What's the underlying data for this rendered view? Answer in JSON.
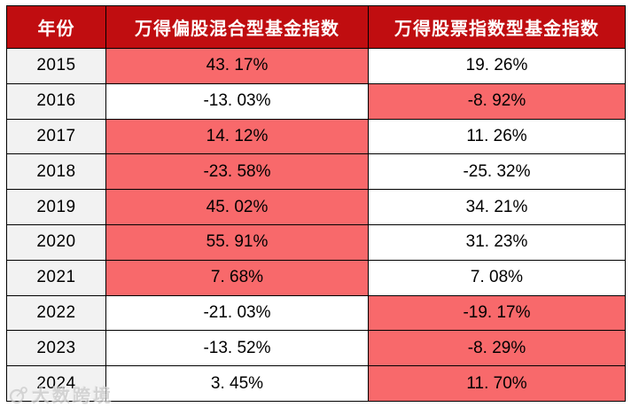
{
  "colors": {
    "header_bg": "#C00D10",
    "header_text": "#FFFFFF",
    "highlight_bg": "#F8696B",
    "year_column_bg": "#F2F2F2",
    "cell_bg": "#FFFFFF",
    "border": "#000000",
    "body_text": "#000000",
    "watermark_text_color": "#C9C9C9"
  },
  "table": {
    "columns": [
      "年份",
      "万得偏股混合型基金指数",
      "万得股票指数型基金指数"
    ],
    "rows": [
      {
        "year": "2015",
        "hybrid": "43. 17%",
        "stock": "19. 26%",
        "highlight": "hybrid"
      },
      {
        "year": "2016",
        "hybrid": "-13. 03%",
        "stock": "-8. 92%",
        "highlight": "stock"
      },
      {
        "year": "2017",
        "hybrid": "14. 12%",
        "stock": "11. 26%",
        "highlight": "hybrid"
      },
      {
        "year": "2018",
        "hybrid": "-23. 58%",
        "stock": "-25. 32%",
        "highlight": "hybrid"
      },
      {
        "year": "2019",
        "hybrid": "45. 02%",
        "stock": "34. 21%",
        "highlight": "hybrid"
      },
      {
        "year": "2020",
        "hybrid": "55. 91%",
        "stock": "31. 23%",
        "highlight": "hybrid"
      },
      {
        "year": "2021",
        "hybrid": "7. 68%",
        "stock": "7. 08%",
        "highlight": "hybrid"
      },
      {
        "year": "2022",
        "hybrid": "-21. 03%",
        "stock": "-19. 17%",
        "highlight": "stock"
      },
      {
        "year": "2023",
        "hybrid": "-13. 52%",
        "stock": "-8. 29%",
        "highlight": "stock"
      },
      {
        "year": "2024",
        "hybrid": "3. 45%",
        "stock": "11. 70%",
        "highlight": "stock"
      }
    ]
  },
  "chart_data": {
    "type": "table",
    "title": "",
    "columns": [
      "年份",
      "万得偏股混合型基金指数",
      "万得股票指数型基金指数"
    ],
    "unit": "%",
    "rows": [
      [
        "2015",
        43.17,
        19.26
      ],
      [
        "2016",
        -13.03,
        -8.92
      ],
      [
        "2017",
        14.12,
        11.26
      ],
      [
        "2018",
        -23.58,
        -25.32
      ],
      [
        "2019",
        45.02,
        34.21
      ],
      [
        "2020",
        55.91,
        31.23
      ],
      [
        "2021",
        7.68,
        7.08
      ],
      [
        "2022",
        -21.03,
        -19.17
      ],
      [
        "2023",
        -13.52,
        -8.29
      ],
      [
        "2024",
        3.45,
        11.7
      ]
    ],
    "highlighted_column_per_row": [
      "hybrid",
      "stock",
      "hybrid",
      "hybrid",
      "hybrid",
      "hybrid",
      "hybrid",
      "stock",
      "stock",
      "stock"
    ],
    "layout_hints": {
      "header_style": "dark red background, white bold text",
      "highlight_style": "salmon red cell background #F8696B marks the higher value of the two indexes each year",
      "grid": "black 1.5px borders on all cells"
    }
  },
  "watermark": {
    "text": "大数跨境"
  }
}
